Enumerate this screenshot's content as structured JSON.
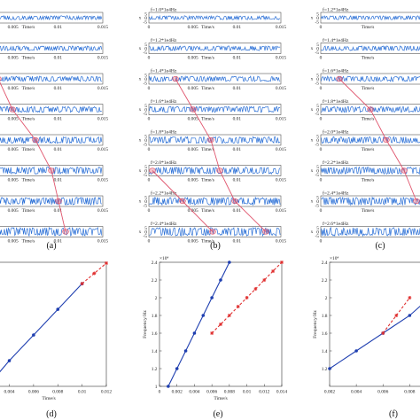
{
  "panel_labels": [
    "(a)",
    "(b)",
    "(c)",
    "(d)",
    "(e)",
    "(f)"
  ],
  "chart_data": [
    {
      "type": "line",
      "panel": "(a)",
      "subtype": "stacked-waveforms",
      "xlabel": "Time/s",
      "xticks": [
        "0.005",
        "0.01",
        "0.015"
      ],
      "xlim": [
        0,
        0.015
      ],
      "yticks": [],
      "rows": 8,
      "row_labels": [],
      "color_signal": "#2a6fd6",
      "color_track": "#e0566e"
    },
    {
      "type": "line",
      "panel": "(b)",
      "subtype": "stacked-waveforms",
      "xlabel": "Time/s",
      "ylabel": "x",
      "xticks": [
        "0",
        "0.005",
        "0.01",
        "0.015"
      ],
      "xlim": [
        0,
        0.015
      ],
      "yticks": [
        "5",
        "0",
        "-5"
      ],
      "rows": 8,
      "row_labels": [
        "f=1.0*1e4Hz",
        "f=1.2*1e4Hz",
        "f=1.4*1e4Hz",
        "f=1.6*1e4Hz",
        "f=1.8*1e4Hz",
        "f=2.0*1e4Hz",
        "f=2.2*1e4Hz",
        "f=2.4*1e4Hz"
      ],
      "color_signal": "#2a6fd6",
      "color_track": "#e0566e"
    },
    {
      "type": "line",
      "panel": "(c)",
      "subtype": "stacked-waveforms",
      "xlabel": "Time/s",
      "ylabel": "x",
      "xticks": [
        "0"
      ],
      "xlim": [
        0,
        0.015
      ],
      "yticks": [
        "5",
        "0",
        "-5"
      ],
      "rows": 8,
      "row_labels": [
        "f=1.2*1e4Hz",
        "f=1.4*1e4Hz",
        "f=1.6*1e4Hz",
        "f=1.8*1e4Hz",
        "f=2.0*1e4Hz",
        "f=2.2*1e4Hz",
        "f=2.4*1e4Hz",
        "f=2.6*1e4Hz"
      ],
      "color_signal": "#2a6fd6",
      "color_track": "#e0566e"
    },
    {
      "type": "line",
      "panel": "(d)",
      "xlabel": "Time/s",
      "ylabel": "",
      "xlim": [
        0.0025,
        0.012
      ],
      "ylim": [
        1.0,
        2.45
      ],
      "xticks": [
        "0.004",
        "0.006",
        "0.008",
        "0.01",
        "0.012"
      ],
      "yticks": [],
      "series": [
        {
          "style": "solid",
          "color": "#1f3fb0",
          "x": [
            0.0025,
            0.004,
            0.006,
            0.008,
            0.01
          ],
          "y": [
            1.05,
            1.3,
            1.6,
            1.9,
            2.2
          ]
        },
        {
          "style": "dashed",
          "color": "#e03030",
          "x": [
            0.01,
            0.011,
            0.012
          ],
          "y": [
            2.2,
            2.32,
            2.44
          ]
        }
      ]
    },
    {
      "type": "line",
      "panel": "(e)",
      "xlabel": "Time/s",
      "ylabel": "Frequency/Hz",
      "exponent": "×10⁴",
      "xlim": [
        0,
        0.014
      ],
      "ylim": [
        1.0,
        2.4
      ],
      "xticks": [
        "0",
        "0.002",
        "0.004",
        "0.006",
        "0.008",
        "0.01",
        "0.012",
        "0.014"
      ],
      "yticks": [
        "1",
        "1.2",
        "1.4",
        "1.6",
        "1.8",
        "2",
        "2.2",
        "2.4"
      ],
      "series": [
        {
          "style": "solid",
          "color": "#1f3fb0",
          "x": [
            0.001,
            0.002,
            0.003,
            0.004,
            0.005,
            0.006,
            0.007,
            0.008
          ],
          "y": [
            1.0,
            1.2,
            1.4,
            1.6,
            1.8,
            2.0,
            2.2,
            2.4
          ]
        },
        {
          "style": "dashed",
          "color": "#e03030",
          "x": [
            0.006,
            0.007,
            0.008,
            0.009,
            0.01,
            0.011,
            0.012,
            0.013,
            0.014
          ],
          "y": [
            1.6,
            1.7,
            1.8,
            1.9,
            2.0,
            2.1,
            2.2,
            2.3,
            2.4
          ]
        }
      ]
    },
    {
      "type": "line",
      "panel": "(f)",
      "xlabel": "",
      "ylabel": "Frequency/Hz",
      "exponent": "×10⁴",
      "xlim": [
        0.002,
        0.0105
      ],
      "ylim": [
        1.0,
        2.4
      ],
      "xticks": [
        "0.002",
        "0.004",
        "0.006",
        "0.008"
      ],
      "yticks": [
        "1.2",
        "1.4",
        "1.6",
        "1.8",
        "2",
        "2.2",
        "2.4"
      ],
      "series": [
        {
          "style": "solid",
          "color": "#1f3fb0",
          "x": [
            0.002,
            0.004,
            0.006,
            0.008,
            0.0095,
            0.0105
          ],
          "y": [
            1.2,
            1.4,
            1.6,
            1.8,
            2.0,
            2.04
          ]
        },
        {
          "style": "dashed",
          "color": "#e03030",
          "x": [
            0.006,
            0.007,
            0.008
          ],
          "y": [
            1.6,
            1.8,
            2.0
          ]
        }
      ]
    }
  ]
}
